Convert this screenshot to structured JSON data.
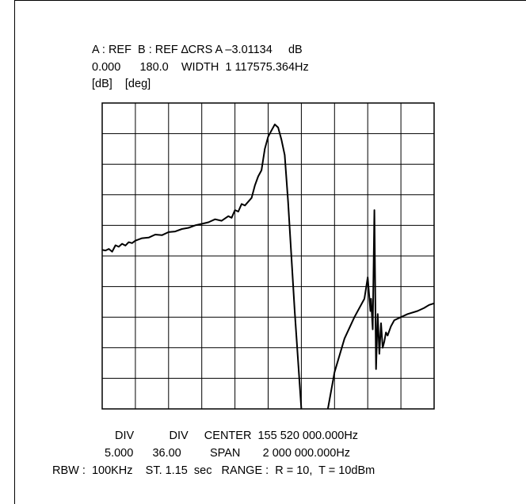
{
  "header": {
    "line1": "A : REF  B : REF ∆CRS A –3.01134     dB",
    "line2": "0.000      180.0    WIDTH  1 117575.364Hz",
    "line3": "[dB]    [deg]"
  },
  "footer": {
    "labels_row": "DIV           DIV     CENTER  155 520 000.000Hz",
    "values_row": "5.000      36.00         SPAN       2 000 000.000Hz",
    "settings_row": "RBW :  100KHz    ST. 1.15  sec   RANGE :  R = 10,  T = 10dBm"
  },
  "chart_data": {
    "type": "line",
    "title": "",
    "xlabel": "",
    "ylabel": "",
    "grid": true,
    "divisions": {
      "x": 10,
      "y": 10
    },
    "units": {
      "a": "dB",
      "b": "deg"
    },
    "scale": {
      "a_per_div": 5.0,
      "b_per_div": 36.0
    },
    "center_hz": 155520000.0,
    "span_hz": 2000000.0,
    "x_range_hz": [
      154520000,
      156520000
    ],
    "series": [
      {
        "id": "A",
        "role": "magnitude",
        "x_div": [
          0,
          0.1,
          0.2,
          0.3,
          0.4,
          0.5,
          0.6,
          0.7,
          0.8,
          0.9,
          1.0,
          1.2,
          1.4,
          1.6,
          1.8,
          2.0,
          2.2,
          2.4,
          2.6,
          2.8,
          3.0,
          3.2,
          3.4,
          3.6,
          3.8,
          3.9,
          4.0,
          4.1,
          4.2,
          4.3,
          4.5,
          4.6,
          4.7,
          4.8,
          4.9,
          5.0,
          5.1,
          5.2,
          5.3,
          5.4,
          5.5,
          5.6,
          5.8,
          6.0
        ],
        "y_div": [
          5.2,
          5.18,
          5.23,
          5.14,
          5.35,
          5.3,
          5.4,
          5.34,
          5.45,
          5.42,
          5.5,
          5.58,
          5.6,
          5.7,
          5.68,
          5.78,
          5.8,
          5.88,
          5.92,
          6.0,
          6.05,
          6.1,
          6.2,
          6.15,
          6.3,
          6.25,
          6.5,
          6.45,
          6.7,
          6.65,
          6.9,
          7.3,
          7.6,
          7.8,
          8.5,
          8.9,
          9.1,
          9.3,
          9.2,
          8.8,
          8.3,
          6.8,
          3.2,
          0
        ]
      },
      {
        "id": "B",
        "role": "phase",
        "x_div": [
          6.8,
          7.0,
          7.3,
          7.6,
          7.9,
          8.0,
          8.08,
          8.1,
          8.15,
          8.2,
          8.25,
          8.3,
          8.35,
          8.4,
          8.45,
          8.5,
          8.55,
          8.6,
          8.7,
          8.8,
          9.0,
          9.2,
          9.5,
          9.7,
          9.85,
          10.0
        ],
        "y_div": [
          0,
          1.2,
          2.3,
          3.0,
          3.6,
          4.3,
          3.2,
          3.6,
          2.6,
          6.5,
          1.3,
          3.1,
          1.8,
          2.8,
          2.0,
          2.2,
          2.5,
          2.4,
          2.7,
          2.9,
          3.0,
          3.1,
          3.2,
          3.3,
          3.4,
          3.45
        ]
      }
    ]
  }
}
